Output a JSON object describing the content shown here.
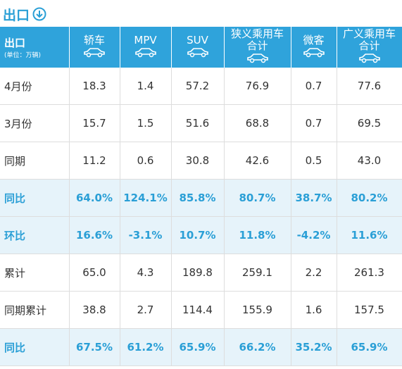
{
  "header": {
    "title": "出口"
  },
  "table": {
    "corner": {
      "title": "出口",
      "unit": "(单位：万辆)"
    },
    "columns": [
      [
        "轿车"
      ],
      [
        "MPV"
      ],
      [
        "SUV"
      ],
      [
        "狭义乘用车",
        "合计"
      ],
      [
        "微客"
      ],
      [
        "广义乘用车",
        "合计"
      ]
    ],
    "rows": [
      {
        "label": "4月份",
        "cells": [
          "18.3",
          "1.4",
          "57.2",
          "76.9",
          "0.7",
          "77.6"
        ],
        "highlight": false
      },
      {
        "label": "3月份",
        "cells": [
          "15.7",
          "1.5",
          "51.6",
          "68.8",
          "0.7",
          "69.5"
        ],
        "highlight": false
      },
      {
        "label": "同期",
        "cells": [
          "11.2",
          "0.6",
          "30.8",
          "42.6",
          "0.5",
          "43.0"
        ],
        "highlight": false
      },
      {
        "label": "同比",
        "cells": [
          "64.0%",
          "124.1%",
          "85.8%",
          "80.7%",
          "38.7%",
          "80.2%"
        ],
        "highlight": true
      },
      {
        "label": "环比",
        "cells": [
          "16.6%",
          "-3.1%",
          "10.7%",
          "11.8%",
          "-4.2%",
          "11.6%"
        ],
        "highlight": true
      },
      {
        "label": "累计",
        "cells": [
          "65.0",
          "4.3",
          "189.8",
          "259.1",
          "2.2",
          "261.3"
        ],
        "highlight": false
      },
      {
        "label": "同期累计",
        "cells": [
          "38.8",
          "2.7",
          "114.4",
          "155.9",
          "1.6",
          "157.5"
        ],
        "highlight": false
      },
      {
        "label": "同比",
        "cells": [
          "67.5%",
          "61.2%",
          "65.9%",
          "66.2%",
          "35.2%",
          "65.9%"
        ],
        "highlight": true
      }
    ]
  }
}
